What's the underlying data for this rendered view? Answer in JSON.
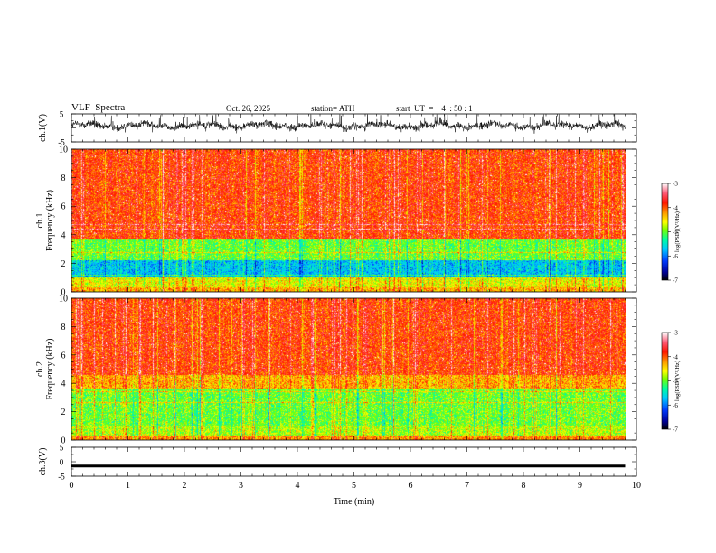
{
  "header": {
    "title": "VLF  Spectra",
    "date": "Oct. 26, 2025",
    "station": "station= ATH",
    "start": "start  UT  =    4  : 50 : 1"
  },
  "chart_data": {
    "type": "heatmap",
    "title": "VLF  Spectra",
    "xlabel": "Time  (min)",
    "xlim": [
      0,
      10
    ],
    "x_ticks": [
      "0",
      "1",
      "2",
      "3",
      "4",
      "5",
      "6",
      "7",
      "8",
      "9",
      "10"
    ],
    "data_end_min": 9.8,
    "ch1_waveform": {
      "ylabel": "ch.1(V)",
      "ylim": [
        -5,
        5
      ],
      "y_ticks": [
        "5",
        "-5"
      ],
      "description_level": "noisy waveform centered near 0 V, envelope about -1.5 to 3.5 V"
    },
    "ch1_spectrogram": {
      "ylabel_top": "ch.1",
      "ylabel": "Frequency  (kHz)",
      "ylim": [
        0,
        10
      ],
      "y_ticks": [
        "0",
        "2",
        "4",
        "6",
        "8",
        "10"
      ],
      "colorbar": {
        "label": "log(PSD)(V²/Hz)",
        "range": [
          -7,
          -3
        ],
        "ticks": [
          "-3",
          "-4",
          "-5",
          "-6",
          "-7"
        ]
      },
      "bands": [
        {
          "from_khz": 3.7,
          "to_khz": 10,
          "level": -3.9
        },
        {
          "from_khz": 2.2,
          "to_khz": 3.7,
          "level": -5.0
        },
        {
          "from_khz": 1.0,
          "to_khz": 2.2,
          "level": -5.7
        },
        {
          "from_khz": 0.3,
          "to_khz": 1.0,
          "level": -4.6
        },
        {
          "from_khz": 0.0,
          "to_khz": 0.3,
          "level": -4.3
        }
      ]
    },
    "ch2_spectrogram": {
      "ylabel_top": "ch.2",
      "ylabel": "Frequency  (kHz)",
      "ylim": [
        0,
        10
      ],
      "y_ticks": [
        "0",
        "2",
        "4",
        "6",
        "8",
        "10"
      ],
      "colorbar": {
        "label": "log(PSD)(V²/Hz)",
        "range": [
          -7,
          -3
        ],
        "ticks": [
          "-3",
          "-4",
          "-5",
          "-6",
          "-7"
        ]
      },
      "bands": [
        {
          "from_khz": 4.6,
          "to_khz": 10,
          "level": -3.9
        },
        {
          "from_khz": 3.6,
          "to_khz": 4.6,
          "level": -4.3
        },
        {
          "from_khz": 1.0,
          "to_khz": 3.6,
          "level": -5.0
        },
        {
          "from_khz": 0.3,
          "to_khz": 1.0,
          "level": -4.8
        },
        {
          "from_khz": 0.0,
          "to_khz": 0.3,
          "level": -4.2
        }
      ]
    },
    "ch3_waveform": {
      "ylabel": "ch.3(V)",
      "ylim": [
        -5,
        5
      ],
      "y_ticks": [
        "5",
        "0",
        "-5"
      ],
      "level_v": -1.5
    }
  }
}
